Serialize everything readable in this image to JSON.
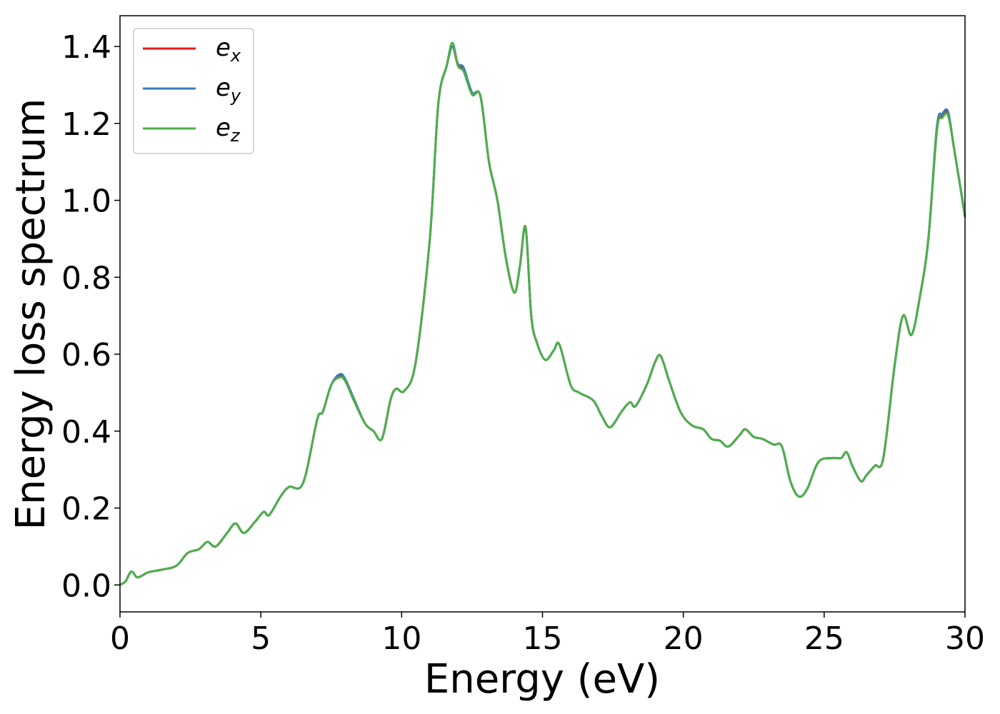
{
  "chart_data": {
    "type": "line",
    "title": "",
    "xlabel": "Energy (eV)",
    "ylabel": "Energy loss spectrum",
    "xlim": [
      0,
      30
    ],
    "ylim": [
      -0.07,
      1.48
    ],
    "xticks": [
      0,
      5,
      10,
      15,
      20,
      25,
      30
    ],
    "xtick_labels": [
      "0",
      "5",
      "10",
      "15",
      "20",
      "25",
      "30"
    ],
    "yticks": [
      0.0,
      0.2,
      0.4,
      0.6,
      0.8,
      1.0,
      1.2,
      1.4
    ],
    "ytick_labels": [
      "0.0",
      "0.2",
      "0.4",
      "0.6",
      "0.8",
      "1.0",
      "1.2",
      "1.4"
    ],
    "grid": false,
    "legend_position": "top-left",
    "x": [
      0,
      0.2,
      0.4,
      0.6,
      0.8,
      1.0,
      1.5,
      2.0,
      2.4,
      2.8,
      3.1,
      3.4,
      3.8,
      4.1,
      4.4,
      4.8,
      5.1,
      5.3,
      5.7,
      6.0,
      6.5,
      7.0,
      7.2,
      7.5,
      7.8,
      8.0,
      8.3,
      8.7,
      9.0,
      9.3,
      9.6,
      9.8,
      10.1,
      10.5,
      11.0,
      11.3,
      11.6,
      11.8,
      12.0,
      12.2,
      12.5,
      12.8,
      13.1,
      13.4,
      13.7,
      14.0,
      14.2,
      14.4,
      14.6,
      14.8,
      15.1,
      15.4,
      15.6,
      16.0,
      16.3,
      16.8,
      17.1,
      17.4,
      17.8,
      18.1,
      18.3,
      18.7,
      19.0,
      19.2,
      19.5,
      19.9,
      20.3,
      20.7,
      21.0,
      21.3,
      21.6,
      22.0,
      22.2,
      22.5,
      22.8,
      23.2,
      23.5,
      23.8,
      24.1,
      24.4,
      24.8,
      25.3,
      25.6,
      25.8,
      26.0,
      26.3,
      26.5,
      26.8,
      27.1,
      27.5,
      27.8,
      28.1,
      28.4,
      28.7,
      29.0,
      29.2,
      29.4,
      29.6,
      29.8,
      30.0
    ],
    "series": [
      {
        "name": "e_x",
        "color": "#e41a1c",
        "values": [
          0.0,
          0.01,
          0.035,
          0.02,
          0.025,
          0.033,
          0.04,
          0.05,
          0.083,
          0.093,
          0.112,
          0.1,
          0.135,
          0.16,
          0.135,
          0.165,
          0.19,
          0.182,
          0.23,
          0.255,
          0.265,
          0.43,
          0.45,
          0.52,
          0.545,
          0.53,
          0.48,
          0.42,
          0.4,
          0.38,
          0.48,
          0.51,
          0.505,
          0.58,
          0.9,
          1.25,
          1.35,
          1.4,
          1.35,
          1.34,
          1.28,
          1.27,
          1.1,
          1.0,
          0.85,
          0.76,
          0.83,
          0.93,
          0.7,
          0.63,
          0.585,
          0.61,
          0.625,
          0.52,
          0.5,
          0.48,
          0.44,
          0.41,
          0.45,
          0.475,
          0.465,
          0.52,
          0.58,
          0.595,
          0.53,
          0.45,
          0.415,
          0.405,
          0.38,
          0.375,
          0.36,
          0.39,
          0.405,
          0.385,
          0.38,
          0.365,
          0.36,
          0.27,
          0.23,
          0.25,
          0.32,
          0.33,
          0.33,
          0.345,
          0.31,
          0.27,
          0.285,
          0.31,
          0.33,
          0.57,
          0.7,
          0.65,
          0.75,
          0.9,
          1.18,
          1.22,
          1.225,
          1.14,
          1.05,
          0.96
        ]
      },
      {
        "name": "e_y",
        "color": "#377eb8",
        "values": [
          0.0,
          0.01,
          0.035,
          0.02,
          0.025,
          0.033,
          0.04,
          0.05,
          0.083,
          0.093,
          0.112,
          0.1,
          0.135,
          0.16,
          0.135,
          0.165,
          0.19,
          0.182,
          0.23,
          0.255,
          0.265,
          0.43,
          0.45,
          0.52,
          0.548,
          0.535,
          0.485,
          0.42,
          0.4,
          0.38,
          0.48,
          0.51,
          0.505,
          0.58,
          0.9,
          1.25,
          1.35,
          1.4,
          1.355,
          1.345,
          1.28,
          1.27,
          1.1,
          1.0,
          0.85,
          0.76,
          0.83,
          0.93,
          0.7,
          0.63,
          0.585,
          0.61,
          0.625,
          0.52,
          0.5,
          0.48,
          0.44,
          0.41,
          0.45,
          0.475,
          0.465,
          0.52,
          0.58,
          0.595,
          0.53,
          0.45,
          0.415,
          0.405,
          0.38,
          0.375,
          0.36,
          0.39,
          0.405,
          0.385,
          0.38,
          0.365,
          0.36,
          0.27,
          0.23,
          0.25,
          0.32,
          0.33,
          0.33,
          0.345,
          0.31,
          0.27,
          0.285,
          0.31,
          0.33,
          0.57,
          0.7,
          0.65,
          0.75,
          0.9,
          1.19,
          1.225,
          1.23,
          1.14,
          1.05,
          0.96
        ]
      },
      {
        "name": "e_z",
        "color": "#4daf4a",
        "values": [
          0.0,
          0.01,
          0.035,
          0.02,
          0.025,
          0.033,
          0.04,
          0.05,
          0.083,
          0.093,
          0.112,
          0.1,
          0.135,
          0.16,
          0.135,
          0.165,
          0.19,
          0.182,
          0.23,
          0.255,
          0.265,
          0.43,
          0.45,
          0.52,
          0.54,
          0.53,
          0.48,
          0.42,
          0.4,
          0.38,
          0.48,
          0.51,
          0.505,
          0.58,
          0.9,
          1.25,
          1.35,
          1.41,
          1.35,
          1.335,
          1.275,
          1.27,
          1.1,
          1.0,
          0.85,
          0.76,
          0.83,
          0.93,
          0.7,
          0.63,
          0.585,
          0.61,
          0.625,
          0.52,
          0.5,
          0.48,
          0.44,
          0.41,
          0.45,
          0.475,
          0.465,
          0.52,
          0.58,
          0.595,
          0.53,
          0.45,
          0.415,
          0.405,
          0.38,
          0.375,
          0.36,
          0.39,
          0.405,
          0.385,
          0.38,
          0.365,
          0.36,
          0.27,
          0.23,
          0.25,
          0.32,
          0.33,
          0.33,
          0.345,
          0.31,
          0.27,
          0.285,
          0.31,
          0.33,
          0.57,
          0.7,
          0.65,
          0.75,
          0.9,
          1.18,
          1.215,
          1.22,
          1.14,
          1.05,
          0.955
        ]
      }
    ]
  },
  "legend": {
    "entries": [
      {
        "base": "e",
        "sub": "x",
        "color": "#e41a1c"
      },
      {
        "base": "e",
        "sub": "y",
        "color": "#377eb8"
      },
      {
        "base": "e",
        "sub": "z",
        "color": "#4daf4a"
      }
    ]
  }
}
